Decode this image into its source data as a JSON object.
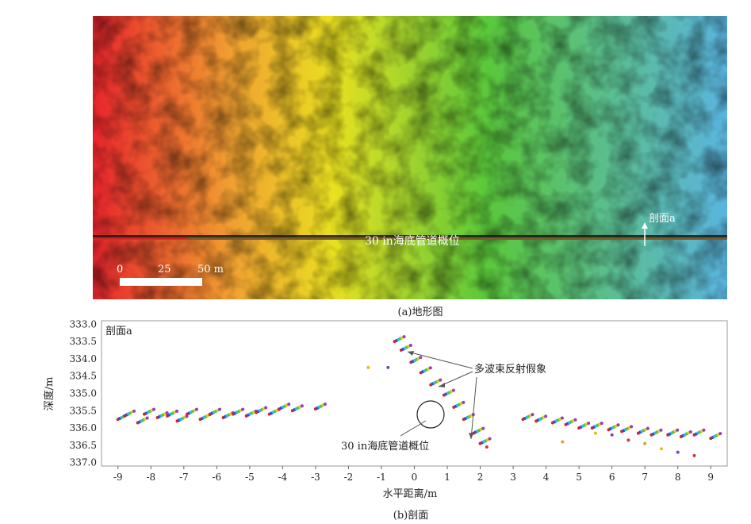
{
  "figure_a": {
    "caption": "(a)地形图",
    "pipeline_label": "30 in海底管道概位",
    "section_label": "剖面a",
    "scale_ticks": [
      "0",
      "25",
      "50 m"
    ]
  },
  "figure_b": {
    "caption": "(b)剖面",
    "annotation_multibeam": "多波束反射假象",
    "annotation_pipe": "30 in海底管道概位"
  },
  "colors": {
    "depth_shallow": "#e8242c",
    "depth_mid": "#e8e020",
    "depth_mid2": "#5ac83a",
    "depth_deep": "#5ab4e0",
    "pipeline": "#7a5a2a"
  },
  "chart_data": {
    "type": "scatter",
    "title": "剖面a",
    "xlabel": "水平距离/m",
    "ylabel": "深度/m",
    "xlim": [
      -9.5,
      9.5
    ],
    "ylim": [
      337.1,
      332.9
    ],
    "y_inverted": true,
    "xticks": [
      -9,
      -8,
      -7,
      -6,
      -5,
      -4,
      -3,
      -2,
      -1,
      0,
      1,
      2,
      3,
      4,
      5,
      6,
      7,
      8,
      9
    ],
    "yticks": [
      "333.0",
      "333.5",
      "334.0",
      "334.5",
      "335.0",
      "335.5",
      "336.0",
      "336.5",
      "337.0"
    ],
    "grid": false,
    "series": [
      {
        "values": [
          [
            -9.0,
            335.75
          ],
          [
            -8.8,
            335.65
          ],
          [
            -8.4,
            335.85
          ],
          [
            -8.2,
            335.6
          ],
          [
            -7.8,
            335.7
          ],
          [
            -7.5,
            335.65
          ],
          [
            -7.2,
            335.8
          ],
          [
            -6.9,
            335.6
          ],
          [
            -6.5,
            335.75
          ],
          [
            -6.2,
            335.6
          ],
          [
            -5.8,
            335.7
          ],
          [
            -5.5,
            335.6
          ],
          [
            -5.1,
            335.65
          ],
          [
            -4.8,
            335.55
          ],
          [
            -4.4,
            335.6
          ],
          [
            -4.1,
            335.45
          ],
          [
            -3.7,
            335.5
          ],
          [
            -3.0,
            335.45
          ],
          [
            -0.6,
            333.5
          ],
          [
            -0.4,
            333.75
          ],
          [
            -0.1,
            334.1
          ],
          [
            0.2,
            334.4
          ],
          [
            0.5,
            334.75
          ],
          [
            0.9,
            335.05
          ],
          [
            1.2,
            335.4
          ],
          [
            1.5,
            335.75
          ],
          [
            1.8,
            336.15
          ],
          [
            2.0,
            336.45
          ],
          [
            3.3,
            335.75
          ],
          [
            3.7,
            335.8
          ],
          [
            4.2,
            335.85
          ],
          [
            4.6,
            335.9
          ],
          [
            5.0,
            336.0
          ],
          [
            5.4,
            336.0
          ],
          [
            5.9,
            336.05
          ],
          [
            6.3,
            336.1
          ],
          [
            6.8,
            336.15
          ],
          [
            7.2,
            336.2
          ],
          [
            7.7,
            336.2
          ],
          [
            8.1,
            336.25
          ],
          [
            8.5,
            336.2
          ],
          [
            9.0,
            336.3
          ]
        ]
      },
      {
        "values": [
          [
            -1.4,
            334.25
          ],
          [
            -0.8,
            334.25
          ],
          [
            2.2,
            336.55
          ],
          [
            4.5,
            336.4
          ],
          [
            5.5,
            336.15
          ],
          [
            6.0,
            336.2
          ],
          [
            6.5,
            336.35
          ],
          [
            7.0,
            336.45
          ],
          [
            7.5,
            336.6
          ],
          [
            8.0,
            336.7
          ],
          [
            8.5,
            336.8
          ]
        ]
      }
    ]
  }
}
